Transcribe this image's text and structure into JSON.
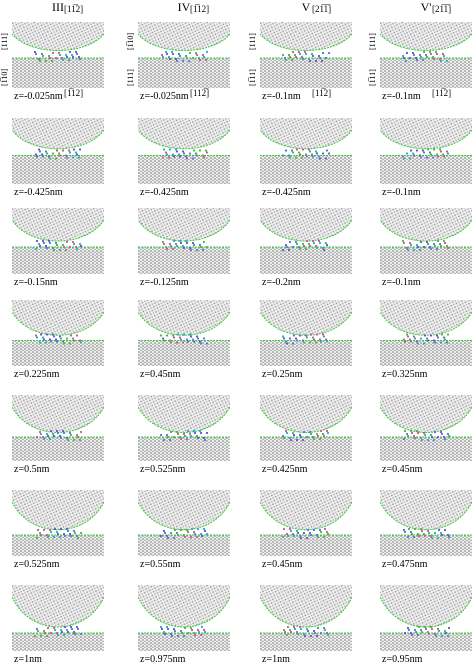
{
  "columns": [
    {
      "header": "III",
      "top_direction": "[11̅2]",
      "left_upper": "[111]",
      "left_lower": "[1̅10]",
      "bottom_direction": "[1̅12]"
    },
    {
      "header": "IV",
      "top_direction": "[1̅12]",
      "left_upper": "[1̅10]",
      "left_lower": "[111]",
      "bottom_direction": "[112̅]"
    },
    {
      "header": "V",
      "top_direction": "[21̅1̅]",
      "left_upper": "[111]",
      "left_lower": "[1̅11]",
      "bottom_direction": "[11̅2]"
    },
    {
      "header": "V'",
      "top_direction": "[21̅1̅]",
      "left_upper": "[111]",
      "left_lower": "[1̅11]",
      "bottom_direction": "[11̅2]"
    }
  ],
  "rows": [
    [
      "z=-0.025nm",
      "z=-0.025nm",
      "z=-0.1nm",
      "z=-0.1nm"
    ],
    [
      "z=-0.425nm",
      "z=-0.425nm",
      "z=-0.425nm",
      "z=-0.1nm"
    ],
    [
      "z=-0.15nm",
      "z=-0.125nm",
      "z=-0.2nm",
      "z=-0.1nm"
    ],
    [
      "z=0.225nm",
      "z=0.45nm",
      "z=0.25nm",
      "z=0.325nm"
    ],
    [
      "z=0.5nm",
      "z=0.525nm",
      "z=0.425nm",
      "z=0.45nm"
    ],
    [
      "z=0.525nm",
      "z=0.55nm",
      "z=0.45nm",
      "z=0.475nm"
    ],
    [
      "z=1nm",
      "z=0.975nm",
      "z=1nm",
      "z=0.95nm"
    ]
  ]
}
